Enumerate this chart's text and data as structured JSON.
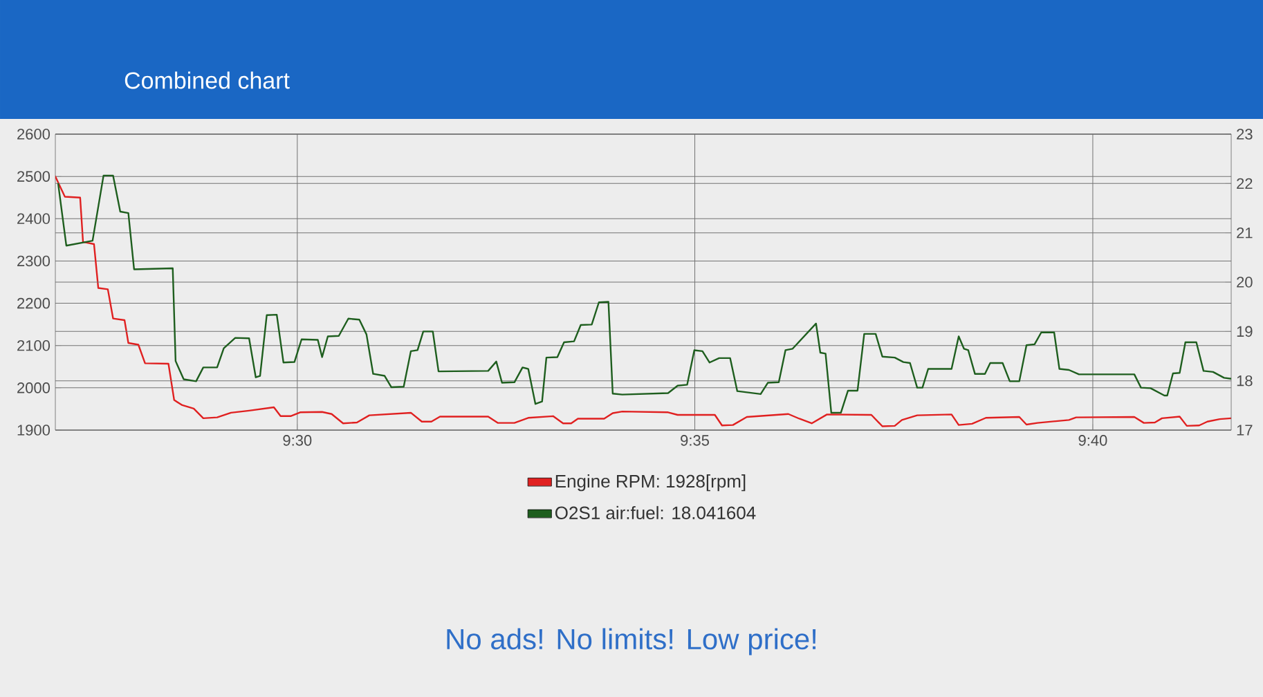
{
  "chart_data": {
    "type": "line",
    "title": "Combined chart",
    "xlim": [
      9.4493,
      9.6957
    ],
    "xticks": [
      {
        "value": 9.5,
        "label": "9:30"
      },
      {
        "value": 9.5833,
        "label": "9:35"
      },
      {
        "value": 9.6667,
        "label": "9:40"
      }
    ],
    "ylim": [
      1900,
      2600
    ],
    "yticks": [
      1900,
      2000,
      2100,
      2200,
      2300,
      2400,
      2500,
      2600
    ],
    "y2lim": [
      17,
      23
    ],
    "y2ticks": [
      17,
      18,
      19,
      20,
      21,
      22,
      23
    ],
    "grid": true,
    "legend": "bottom",
    "annotations": [
      "No ads! No limits! Low price!"
    ],
    "series": [
      {
        "name": "Engine RPM: 1928[rpm]",
        "color": "#e02020",
        "x": [
          9.4493,
          9.4513,
          9.4545,
          9.4551,
          9.4574,
          9.4583,
          9.4603,
          9.4614,
          9.4638,
          9.4646,
          9.4667,
          9.4681,
          9.473,
          9.4742,
          9.4759,
          9.4783,
          9.4803,
          9.4832,
          9.4861,
          9.4899,
          9.4951,
          9.4965,
          9.4986,
          9.5006,
          9.5052,
          9.5072,
          9.5096,
          9.5125,
          9.5151,
          9.5238,
          9.5261,
          9.5281,
          9.5299,
          9.54,
          9.542,
          9.5455,
          9.5484,
          9.5536,
          9.5557,
          9.5574,
          9.5588,
          9.5643,
          9.5661,
          9.5681,
          9.5777,
          9.5797,
          9.5875,
          9.589,
          9.5913,
          9.5942,
          9.6029,
          9.6052,
          9.6078,
          9.611,
          9.6203,
          9.6226,
          9.6252,
          9.6267,
          9.6299,
          9.6371,
          9.6386,
          9.6414,
          9.6443,
          9.6513,
          9.6528,
          9.6551,
          9.6617,
          9.6632,
          9.6754,
          9.6774,
          9.6797,
          9.6812,
          9.6849,
          9.6864,
          9.689,
          9.6907,
          9.6933,
          9.6957
        ],
        "values": [
          2500,
          2452,
          2450,
          2345,
          2340,
          2236,
          2233,
          2164,
          2160,
          2106,
          2102,
          2058,
          2057,
          1971,
          1959,
          1951,
          1928,
          1930,
          1941,
          1946,
          1954,
          1933,
          1933,
          1942,
          1943,
          1938,
          1916,
          1918,
          1935,
          1941,
          1920,
          1920,
          1932,
          1932,
          1917,
          1917,
          1929,
          1933,
          1916,
          1916,
          1927,
          1927,
          1940,
          1944,
          1942,
          1936,
          1936,
          1911,
          1912,
          1931,
          1938,
          1927,
          1916,
          1937,
          1936,
          1909,
          1910,
          1924,
          1935,
          1937,
          1912,
          1915,
          1929,
          1931,
          1913,
          1917,
          1924,
          1930,
          1931,
          1917,
          1918,
          1928,
          1932,
          1910,
          1911,
          1920,
          1926,
          1928
        ]
      },
      {
        "name": "O2S1 air:fuel: 18.041604",
        "color": "#1e5e1e",
        "axis": "y2",
        "x": [
          9.4499,
          9.4516,
          9.4571,
          9.4594,
          9.4614,
          9.4629,
          9.4646,
          9.4658,
          9.4739,
          9.4745,
          9.4762,
          9.4788,
          9.4803,
          9.4832,
          9.4846,
          9.487,
          9.4899,
          9.4913,
          9.4922,
          9.4936,
          9.4957,
          9.4971,
          9.4994,
          9.5009,
          9.5043,
          9.5052,
          9.5064,
          9.5087,
          9.5107,
          9.513,
          9.5145,
          9.5159,
          9.5183,
          9.5197,
          9.5223,
          9.5238,
          9.5252,
          9.5264,
          9.5284,
          9.5296,
          9.54,
          9.5417,
          9.5429,
          9.5455,
          9.5472,
          9.5484,
          9.5499,
          9.5513,
          9.5522,
          9.5545,
          9.5559,
          9.558,
          9.5594,
          9.5617,
          9.5632,
          9.5652,
          9.5661,
          9.5681,
          9.5777,
          9.5797,
          9.5817,
          9.5832,
          9.5849,
          9.5864,
          9.5884,
          9.5907,
          9.5922,
          9.5971,
          9.5986,
          9.6009,
          9.6023,
          9.6038,
          9.6087,
          9.6096,
          9.6107,
          9.6119,
          9.6139,
          9.6154,
          9.6174,
          9.6188,
          9.6212,
          9.6226,
          9.6252,
          9.627,
          9.6284,
          9.6299,
          9.631,
          9.6322,
          9.6371,
          9.6386,
          9.6397,
          9.6406,
          9.642,
          9.6441,
          9.6452,
          9.6478,
          9.6493,
          9.6513,
          9.6528,
          9.6545,
          9.6559,
          9.6586,
          9.6597,
          9.6617,
          9.6638,
          9.6754,
          9.6768,
          9.6788,
          9.6817,
          9.6823,
          9.6835,
          9.6849,
          9.6861,
          9.6884,
          9.6899,
          9.6919,
          9.6942,
          9.6957
        ],
        "values": [
          21.99,
          20.74,
          20.84,
          22.16,
          22.16,
          21.43,
          21.4,
          20.26,
          20.28,
          18.4,
          18.03,
          17.99,
          18.27,
          18.27,
          18.66,
          18.87,
          18.86,
          18.07,
          18.1,
          19.33,
          19.34,
          18.37,
          18.38,
          18.84,
          18.83,
          18.48,
          18.9,
          18.91,
          19.26,
          19.24,
          18.94,
          18.14,
          18.1,
          17.87,
          17.88,
          18.6,
          18.62,
          19.0,
          19.0,
          18.19,
          18.2,
          18.39,
          17.96,
          17.97,
          18.27,
          18.24,
          17.53,
          17.58,
          18.47,
          18.48,
          18.78,
          18.8,
          19.13,
          19.14,
          19.59,
          19.6,
          17.74,
          17.72,
          17.75,
          17.9,
          17.92,
          18.62,
          18.6,
          18.37,
          18.46,
          18.46,
          17.79,
          17.73,
          17.96,
          17.97,
          18.62,
          18.65,
          19.16,
          18.57,
          18.55,
          17.35,
          17.35,
          17.8,
          17.8,
          18.95,
          18.95,
          18.49,
          18.47,
          18.38,
          18.36,
          17.86,
          17.86,
          18.24,
          18.24,
          18.9,
          18.65,
          18.62,
          18.14,
          18.14,
          18.36,
          18.36,
          17.99,
          17.99,
          18.72,
          18.74,
          18.98,
          18.98,
          18.24,
          18.22,
          18.13,
          18.13,
          17.86,
          17.85,
          17.7,
          17.7,
          18.15,
          18.16,
          18.78,
          18.78,
          18.2,
          18.18,
          18.06,
          18.04
        ]
      }
    ]
  }
}
